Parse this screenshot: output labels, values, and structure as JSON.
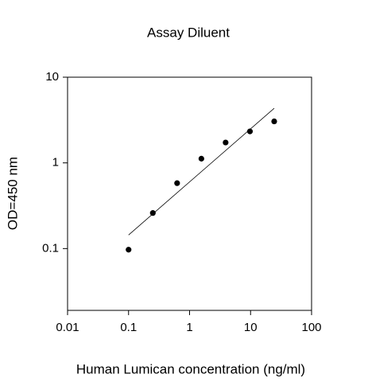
{
  "chart_data": {
    "type": "scatter",
    "title": "Assay Diluent",
    "x_label": "Human Lumican concentration (ng/ml)",
    "y_label": "OD=450 nm",
    "x": [
      0.1,
      0.25,
      0.625,
      1.5625,
      3.9,
      9.77,
      24.4
    ],
    "values": [
      0.097,
      0.26,
      0.58,
      1.12,
      1.73,
      2.33,
      3.05
    ],
    "color": "#000000",
    "trendline": {
      "x": [
        0.1,
        24.4
      ],
      "values": [
        0.144,
        4.34
      ],
      "color": "#000000"
    },
    "x_log": true,
    "y_log": true,
    "xlim": [
      0.01,
      100
    ],
    "ylim": [
      0.019,
      10
    ],
    "xticks": [
      0.01,
      0.1,
      1,
      10,
      100
    ],
    "yticks": [
      0.1,
      1,
      10
    ],
    "grid": false
  }
}
